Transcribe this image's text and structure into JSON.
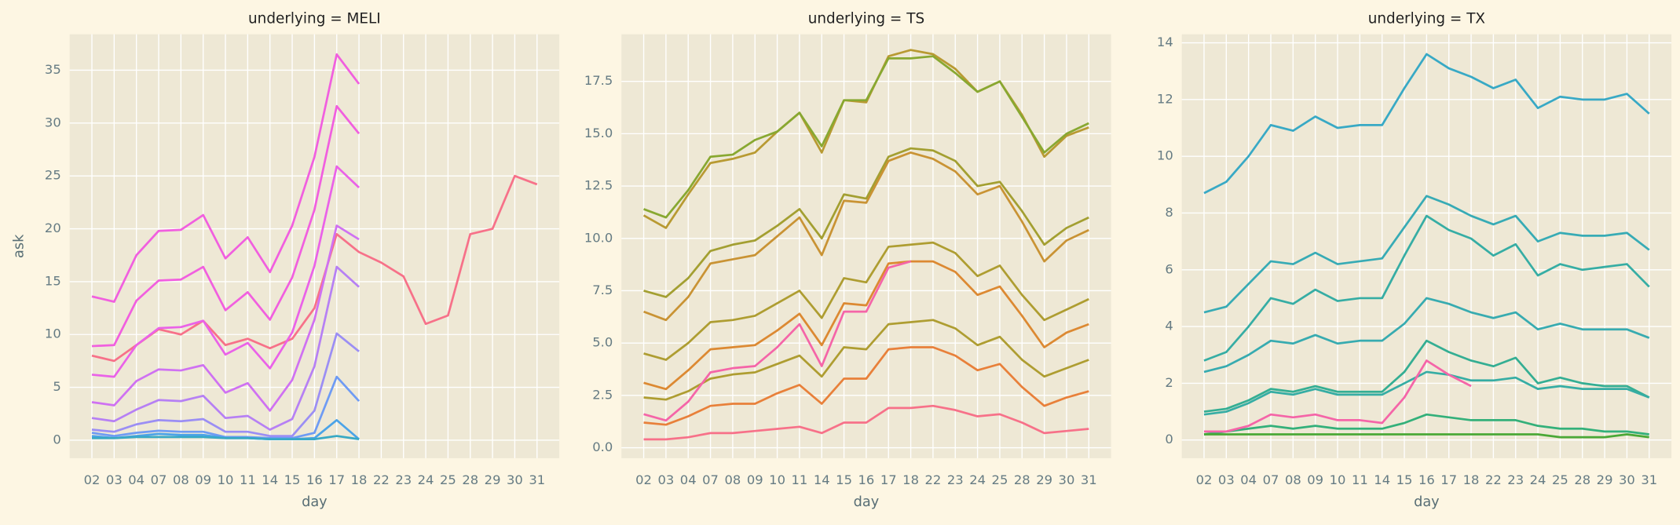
{
  "chart_data": [
    {
      "type": "line",
      "title": "underlying = MELI",
      "xlabel": "day",
      "ylabel": "ask",
      "categories": [
        "02",
        "03",
        "04",
        "07",
        "08",
        "09",
        "10",
        "11",
        "14",
        "15",
        "16",
        "17",
        "18",
        "22",
        "23",
        "24",
        "25",
        "28",
        "29",
        "30",
        "31"
      ],
      "ylim": [
        -1.7,
        38.4
      ],
      "yticks": [
        0,
        5,
        10,
        15,
        20,
        25,
        30,
        35
      ],
      "grid": true,
      "series": [
        {
          "color": "#f77189",
          "values": [
            8,
            7.5,
            9,
            10.5,
            10,
            11.3,
            9,
            9.6,
            8.7,
            9.6,
            12.5,
            19.5,
            17.8,
            16.8,
            15.5,
            11,
            11.8,
            19.5,
            20,
            25,
            24.2
          ]
        },
        {
          "color": "#f15fdf",
          "values": [
            13.6,
            13.1,
            17.5,
            19.8,
            19.9,
            21.3,
            17.2,
            19.2,
            15.9,
            20.3,
            26.8,
            36.5,
            33.7,
            null,
            null,
            null,
            null,
            null,
            null,
            null,
            null
          ]
        },
        {
          "color": "#f15fdf",
          "values": [
            8.9,
            9,
            13.2,
            15.1,
            15.2,
            16.4,
            12.3,
            14,
            11.4,
            15.4,
            21.8,
            31.6,
            29,
            null,
            null,
            null,
            null,
            null,
            null,
            null,
            null
          ]
        },
        {
          "color": "#ea62e8",
          "values": [
            6.2,
            6,
            9,
            10.6,
            10.7,
            11.3,
            8.1,
            9.2,
            6.8,
            10.2,
            16.5,
            25.9,
            23.9,
            null,
            null,
            null,
            null,
            null,
            null,
            null,
            null
          ]
        },
        {
          "color": "#cf71f2",
          "values": [
            3.6,
            3.3,
            5.6,
            6.7,
            6.6,
            7.1,
            4.5,
            5.4,
            2.8,
            5.7,
            11.4,
            20.3,
            19,
            null,
            null,
            null,
            null,
            null,
            null,
            null,
            null
          ]
        },
        {
          "color": "#b680f4",
          "values": [
            2.1,
            1.8,
            2.9,
            3.8,
            3.7,
            4.2,
            2.1,
            2.3,
            1,
            2,
            7,
            16.4,
            14.5,
            null,
            null,
            null,
            null,
            null,
            null,
            null,
            null
          ]
        },
        {
          "color": "#9b8ef4",
          "values": [
            1,
            0.8,
            1.5,
            1.9,
            1.8,
            2,
            0.8,
            0.8,
            0.4,
            0.4,
            2.8,
            10.1,
            8.4,
            null,
            null,
            null,
            null,
            null,
            null,
            null,
            null
          ]
        },
        {
          "color": "#6e9bf4",
          "values": [
            0.7,
            0.4,
            0.7,
            0.9,
            0.8,
            0.8,
            0.3,
            0.3,
            0.2,
            0.2,
            0.7,
            6,
            3.7,
            null,
            null,
            null,
            null,
            null,
            null,
            null,
            null
          ]
        },
        {
          "color": "#4ba3e8",
          "values": [
            0.4,
            0.2,
            0.4,
            0.6,
            0.5,
            0.5,
            0.2,
            0.2,
            0.1,
            0.1,
            0.2,
            1.9,
            0.1,
            null,
            null,
            null,
            null,
            null,
            null,
            null,
            null
          ]
        },
        {
          "color": "#38a9c5",
          "values": [
            0.2,
            0.2,
            0.3,
            0.3,
            0.3,
            0.3,
            0.2,
            0.2,
            0.1,
            0.1,
            0.1,
            0.4,
            0.1,
            null,
            null,
            null,
            null,
            null,
            null,
            null,
            null
          ]
        }
      ]
    },
    {
      "type": "line",
      "title": "underlying = TS",
      "xlabel": "day",
      "categories": [
        "02",
        "03",
        "04",
        "07",
        "08",
        "09",
        "10",
        "11",
        "14",
        "15",
        "16",
        "17",
        "18",
        "22",
        "23",
        "24",
        "25",
        "28",
        "29",
        "30",
        "31"
      ],
      "ylim": [
        -0.5,
        19.75
      ],
      "yticks": [
        {
          "value": 0,
          "label": "0.0"
        },
        2.5,
        {
          "value": 5,
          "label": "5.0"
        },
        7.5,
        {
          "value": 10,
          "label": "10.0"
        },
        12.5,
        {
          "value": 15,
          "label": "15.0"
        },
        17.5
      ],
      "grid": true,
      "series": [
        {
          "color": "#b89a32",
          "values": [
            11.1,
            10.5,
            12.1,
            13.6,
            13.8,
            14.1,
            15.1,
            16,
            14.1,
            16.6,
            16.5,
            18.7,
            19,
            18.8,
            18.1,
            17,
            17.5,
            15.9,
            13.9,
            14.9,
            15.3
          ]
        },
        {
          "color": "#88a831",
          "values": [
            11.4,
            11,
            12.3,
            13.9,
            14,
            14.7,
            15.1,
            16,
            14.4,
            16.6,
            16.6,
            18.6,
            18.6,
            18.7,
            17.9,
            17,
            17.5,
            15.8,
            14.1,
            15,
            15.5
          ]
        },
        {
          "color": "#a39f31",
          "values": [
            7.5,
            7.2,
            8.1,
            9.4,
            9.7,
            9.9,
            10.6,
            11.4,
            10,
            12.1,
            11.9,
            13.9,
            14.3,
            14.2,
            13.7,
            12.5,
            12.7,
            11.3,
            9.7,
            10.5,
            11
          ]
        },
        {
          "color": "#c99334",
          "values": [
            6.5,
            6.1,
            7.2,
            8.8,
            9,
            9.2,
            10.1,
            11,
            9.2,
            11.8,
            11.7,
            13.7,
            14.1,
            13.8,
            13.2,
            12.1,
            12.5,
            10.8,
            8.9,
            9.9,
            10.4
          ]
        },
        {
          "color": "#ae9d31",
          "values": [
            4.5,
            4.2,
            5,
            6,
            6.1,
            6.3,
            6.9,
            7.5,
            6.2,
            8.1,
            7.9,
            9.6,
            9.7,
            9.8,
            9.3,
            8.2,
            8.7,
            7.3,
            6.1,
            6.6,
            7.1
          ]
        },
        {
          "color": "#dc8932",
          "values": [
            3.1,
            2.8,
            3.7,
            4.7,
            4.8,
            4.9,
            5.6,
            6.4,
            4.9,
            6.9,
            6.8,
            8.8,
            8.9,
            8.9,
            8.4,
            7.3,
            7.7,
            6.3,
            4.8,
            5.5,
            5.9
          ]
        },
        {
          "color": "#ae9d31",
          "values": [
            2.4,
            2.3,
            2.7,
            3.3,
            3.5,
            3.6,
            4,
            4.4,
            3.4,
            4.8,
            4.7,
            5.9,
            6,
            6.1,
            5.7,
            4.9,
            5.3,
            4.2,
            3.4,
            3.8,
            4.2
          ]
        },
        {
          "color": "#e8803a",
          "values": [
            1.2,
            1.1,
            1.5,
            2,
            2.1,
            2.1,
            2.6,
            3,
            2.1,
            3.3,
            3.3,
            4.7,
            4.8,
            4.8,
            4.4,
            3.7,
            4,
            2.9,
            2,
            2.4,
            2.7
          ]
        },
        {
          "color": "#f77189",
          "values": [
            0.4,
            0.4,
            0.5,
            0.7,
            0.7,
            0.8,
            0.9,
            1,
            0.7,
            1.2,
            1.2,
            1.9,
            1.9,
            2,
            1.8,
            1.5,
            1.6,
            1.2,
            0.7,
            0.8,
            0.9
          ]
        },
        {
          "color": "#f565a8",
          "values": [
            1.6,
            1.3,
            2.2,
            3.6,
            3.8,
            3.9,
            4.8,
            5.9,
            3.9,
            6.5,
            6.5,
            8.6,
            8.9,
            null,
            null,
            null,
            null,
            null,
            null,
            null,
            null
          ]
        }
      ]
    },
    {
      "type": "line",
      "title": "underlying = TX",
      "xlabel": "day",
      "categories": [
        "02",
        "03",
        "04",
        "07",
        "08",
        "09",
        "10",
        "11",
        "14",
        "15",
        "16",
        "17",
        "18",
        "22",
        "23",
        "24",
        "25",
        "28",
        "29",
        "30",
        "31"
      ],
      "ylim": [
        -0.64,
        14.3
      ],
      "yticks": [
        0,
        2,
        4,
        6,
        8,
        10,
        12,
        14
      ],
      "grid": true,
      "series": [
        {
          "color": "#38a9c5",
          "values": [
            8.7,
            9.1,
            10,
            11.1,
            10.9,
            11.4,
            11,
            11.1,
            11.1,
            12.4,
            13.6,
            13.1,
            12.8,
            12.4,
            12.7,
            11.7,
            12.1,
            12,
            12,
            12.2,
            11.5
          ]
        },
        {
          "color": "#37abb5",
          "values": [
            4.5,
            4.7,
            5.5,
            6.3,
            6.2,
            6.6,
            6.2,
            6.3,
            6.4,
            7.5,
            8.6,
            8.3,
            7.9,
            7.6,
            7.9,
            7,
            7.3,
            7.2,
            7.2,
            7.3,
            6.7
          ]
        },
        {
          "color": "#36ada4",
          "values": [
            2.8,
            3.1,
            4,
            5,
            4.8,
            5.3,
            4.9,
            5,
            5,
            6.5,
            7.9,
            7.4,
            7.1,
            6.5,
            6.9,
            5.8,
            6.2,
            6,
            6.1,
            6.2,
            5.4
          ]
        },
        {
          "color": "#37abb0",
          "values": [
            2.4,
            2.6,
            3,
            3.5,
            3.4,
            3.7,
            3.4,
            3.5,
            3.5,
            4.1,
            5,
            4.8,
            4.5,
            4.3,
            4.5,
            3.9,
            4.1,
            3.9,
            3.9,
            3.9,
            3.6
          ]
        },
        {
          "color": "#34ae93",
          "values": [
            1,
            1.1,
            1.4,
            1.8,
            1.7,
            1.9,
            1.7,
            1.7,
            1.7,
            2.4,
            3.5,
            3.1,
            2.8,
            2.6,
            2.9,
            2,
            2.2,
            2,
            1.9,
            1.9,
            1.5
          ]
        },
        {
          "color": "#36ada4",
          "values": [
            0.9,
            1,
            1.3,
            1.7,
            1.6,
            1.8,
            1.6,
            1.6,
            1.6,
            2,
            2.4,
            2.3,
            2.1,
            2.1,
            2.2,
            1.8,
            1.9,
            1.8,
            1.8,
            1.8,
            1.5
          ]
        },
        {
          "color": "#33b07a",
          "values": [
            0.2,
            0.3,
            0.4,
            0.5,
            0.4,
            0.5,
            0.4,
            0.4,
            0.4,
            0.6,
            0.9,
            0.8,
            0.7,
            0.7,
            0.7,
            0.5,
            0.4,
            0.4,
            0.3,
            0.3,
            0.2
          ]
        },
        {
          "color": "#4aa836",
          "values": [
            0.2,
            0.2,
            0.2,
            0.2,
            0.2,
            0.2,
            0.2,
            0.2,
            0.2,
            0.2,
            0.2,
            0.2,
            0.2,
            0.2,
            0.2,
            0.2,
            0.1,
            0.1,
            0.1,
            0.2,
            0.1
          ]
        },
        {
          "color": "#f565a8",
          "values": [
            0.3,
            0.3,
            0.5,
            0.9,
            0.8,
            0.9,
            0.7,
            0.7,
            0.6,
            1.5,
            2.8,
            2.3,
            1.9,
            null,
            null,
            null,
            null,
            null,
            null,
            null,
            null
          ]
        }
      ]
    }
  ]
}
